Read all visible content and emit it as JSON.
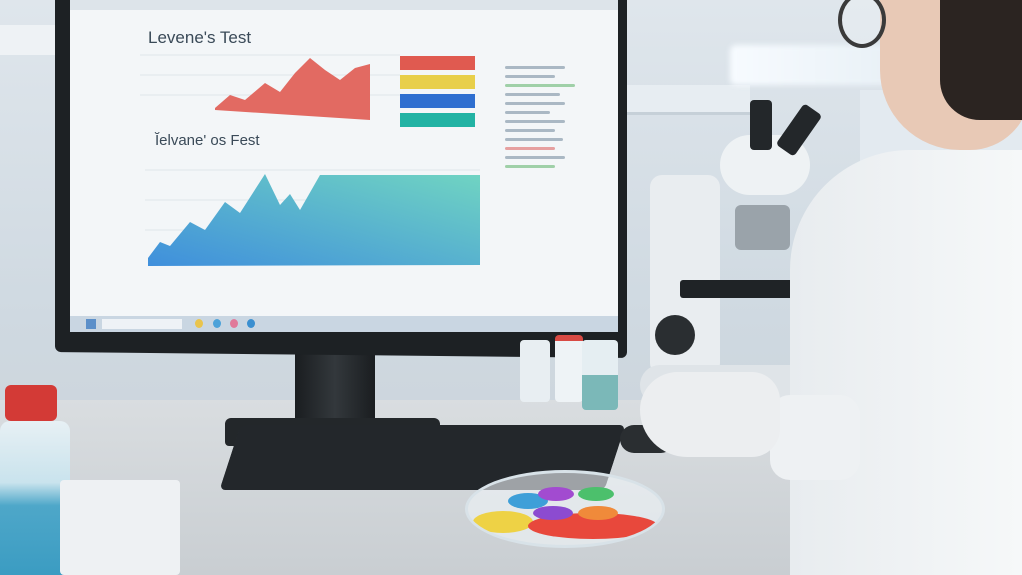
{
  "scene": "lab",
  "screen": {
    "chart1_title": "Levene's Test",
    "chart2_title": "Ĭelvane' os Fest",
    "legend_colors": [
      "#e05a50",
      "#e8cf4a",
      "#2f6fd0",
      "#22b3a4"
    ],
    "accent_red": "#e26a62",
    "accent_blue": "#3f8fdc",
    "accent_teal": "#62ccc0"
  },
  "icons": [
    "start-icon",
    "taskbar-app-icons"
  ]
}
